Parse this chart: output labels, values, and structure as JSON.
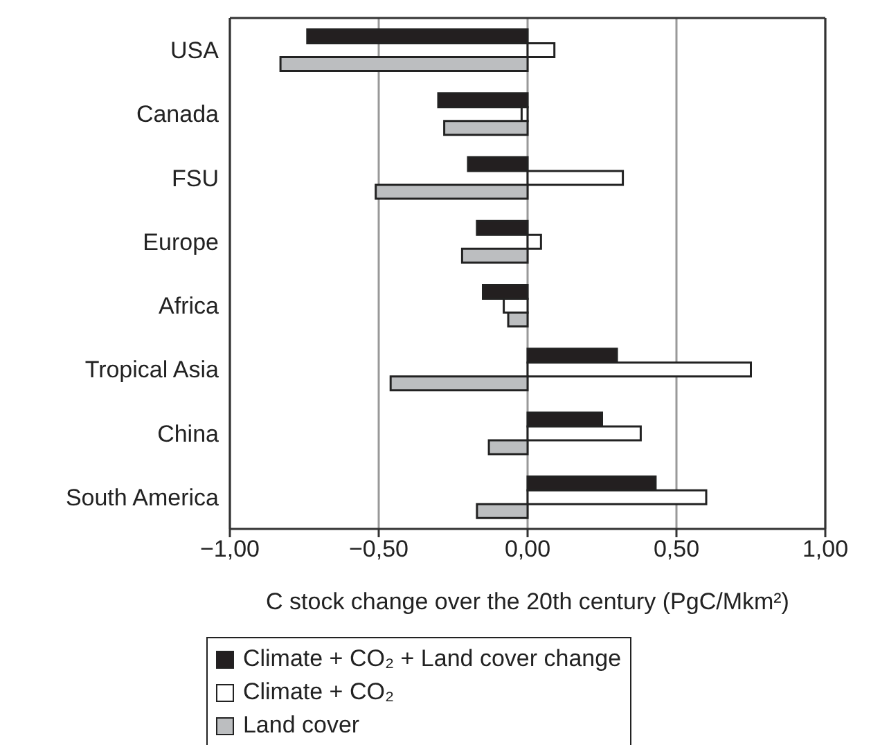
{
  "chart_data": {
    "type": "bar",
    "orientation": "horizontal",
    "xlabel": "C stock change over the 20th century (PgC/Mkm²)",
    "categories": [
      "USA",
      "Canada",
      "FSU",
      "Europe",
      "Africa",
      "Tropical Asia",
      "China",
      "South America"
    ],
    "series": [
      {
        "name": "Climate + CO₂ + Land cover change",
        "color": "#231f20",
        "values": [
          -0.74,
          -0.3,
          -0.2,
          -0.17,
          -0.15,
          0.3,
          0.25,
          0.43
        ]
      },
      {
        "name": "Climate + CO₂",
        "color": "#ffffff",
        "values": [
          0.09,
          -0.02,
          0.32,
          0.045,
          -0.08,
          0.75,
          0.38,
          0.6
        ]
      },
      {
        "name": "Land cover",
        "color": "#bcbec0",
        "values": [
          -0.83,
          -0.28,
          -0.51,
          -0.22,
          -0.065,
          -0.46,
          -0.13,
          -0.17
        ]
      }
    ],
    "xlim": [
      -1,
      1
    ],
    "xticks": [
      {
        "value": -1,
        "label": "−1,00"
      },
      {
        "value": -0.5,
        "label": "−0,50"
      },
      {
        "value": 0,
        "label": "0,00"
      },
      {
        "value": 0.5,
        "label": "0,50"
      },
      {
        "value": 1,
        "label": "1,00"
      }
    ],
    "grid": "x",
    "legend": "bottom"
  }
}
